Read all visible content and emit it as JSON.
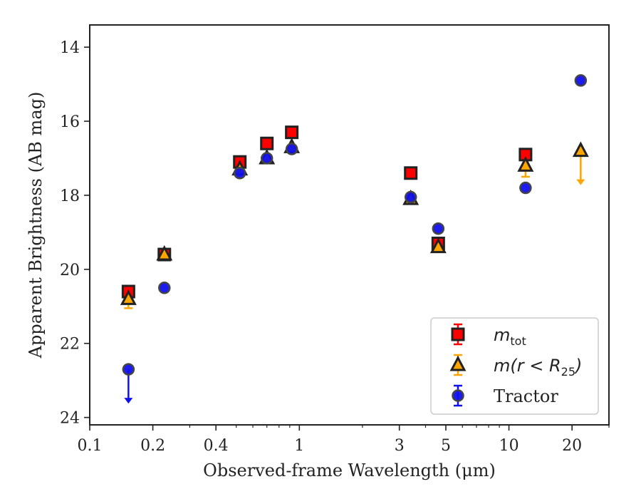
{
  "chart_data": {
    "type": "scatter",
    "xlabel": "Observed-frame Wavelength (μm)",
    "ylabel": "Apparent Brightness (AB mag)",
    "xscale": "log",
    "xlim": [
      0.1,
      30
    ],
    "ylim": [
      24.2,
      13.4
    ],
    "y_inverted": true,
    "x_ticks": [
      0.1,
      0.2,
      0.4,
      1,
      3,
      5,
      10,
      20
    ],
    "x_tick_labels": [
      "0.1",
      "0.2",
      "0.4",
      "1",
      "3",
      "5",
      "10",
      "20"
    ],
    "y_ticks": [
      14,
      16,
      18,
      20,
      22,
      24
    ],
    "y_tick_labels": [
      "14",
      "16",
      "18",
      "20",
      "22",
      "24"
    ],
    "grid": false,
    "legend_position": "lower-right",
    "series": [
      {
        "name": "m_tot",
        "legend_base": "m",
        "legend_sub": "tot",
        "marker": "square",
        "color": "#ff0000",
        "edge": "#222222",
        "points": [
          {
            "x": 0.153,
            "y": 20.6
          },
          {
            "x": 0.227,
            "y": 19.6
          },
          {
            "x": 0.52,
            "y": 17.1
          },
          {
            "x": 0.7,
            "y": 16.6
          },
          {
            "x": 0.92,
            "y": 16.3
          },
          {
            "x": 3.4,
            "y": 17.4
          },
          {
            "x": 4.6,
            "y": 19.3
          },
          {
            "x": 12.0,
            "y": 16.9
          }
        ]
      },
      {
        "name": "m(r < R25)",
        "legend_base": "m(r < R",
        "legend_sub": "25",
        "legend_end": ")",
        "marker": "triangle",
        "color": "#ffa500",
        "edge": "#222222",
        "points": [
          {
            "x": 0.153,
            "y": 20.8,
            "err_lo": 0.25
          },
          {
            "x": 0.227,
            "y": 19.6
          },
          {
            "x": 0.52,
            "y": 17.3
          },
          {
            "x": 0.7,
            "y": 17.0
          },
          {
            "x": 0.92,
            "y": 16.7
          },
          {
            "x": 3.4,
            "y": 18.1
          },
          {
            "x": 4.6,
            "y": 19.4
          },
          {
            "x": 12.0,
            "y": 17.2,
            "err_lo": 0.3
          },
          {
            "x": 22.0,
            "y": 16.8,
            "upper_limit": true
          }
        ]
      },
      {
        "name": "Tractor",
        "marker": "circle",
        "color": "#1010ee",
        "edge": "#444444",
        "points": [
          {
            "x": 0.153,
            "y": 22.7,
            "upper_limit": true
          },
          {
            "x": 0.227,
            "y": 20.5
          },
          {
            "x": 0.52,
            "y": 17.4
          },
          {
            "x": 0.7,
            "y": 17.0
          },
          {
            "x": 0.92,
            "y": 16.75
          },
          {
            "x": 3.4,
            "y": 18.05
          },
          {
            "x": 4.6,
            "y": 18.9
          },
          {
            "x": 12.0,
            "y": 17.8
          },
          {
            "x": 22.0,
            "y": 14.9
          }
        ]
      }
    ]
  }
}
